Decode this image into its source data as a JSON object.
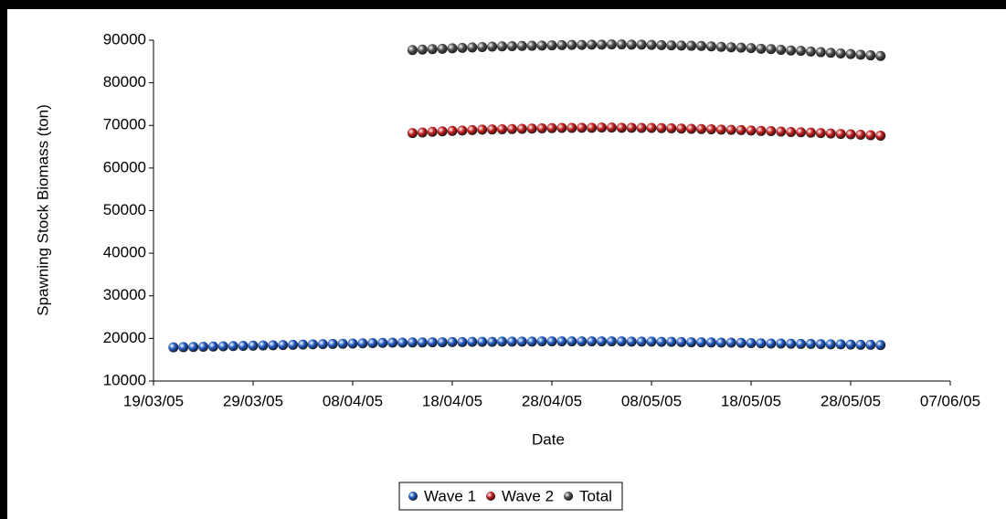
{
  "chart_data": {
    "type": "scatter",
    "xlabel": "Date",
    "ylabel": "Spawning Stock Biomass (ton)",
    "x": [
      "21/03/05",
      "22/03/05",
      "23/03/05",
      "24/03/05",
      "25/03/05",
      "26/03/05",
      "27/03/05",
      "28/03/05",
      "29/03/05",
      "30/03/05",
      "31/03/05",
      "01/04/05",
      "02/04/05",
      "03/04/05",
      "04/04/05",
      "05/04/05",
      "06/04/05",
      "07/04/05",
      "08/04/05",
      "09/04/05",
      "10/04/05",
      "11/04/05",
      "12/04/05",
      "13/04/05",
      "14/04/05",
      "15/04/05",
      "16/04/05",
      "17/04/05",
      "18/04/05",
      "19/04/05",
      "20/04/05",
      "21/04/05",
      "22/04/05",
      "23/04/05",
      "24/04/05",
      "25/04/05",
      "26/04/05",
      "27/04/05",
      "28/04/05",
      "29/04/05",
      "30/04/05",
      "01/05/05",
      "02/05/05",
      "03/05/05",
      "04/05/05",
      "05/05/05",
      "06/05/05",
      "07/05/05",
      "08/05/05",
      "09/05/05",
      "10/05/05",
      "11/05/05",
      "12/05/05",
      "13/05/05",
      "14/05/05",
      "15/05/05",
      "16/05/05",
      "17/05/05",
      "18/05/05",
      "19/05/05",
      "20/05/05",
      "21/05/05",
      "22/05/05",
      "23/05/05",
      "24/05/05",
      "25/05/05",
      "26/05/05",
      "27/05/05",
      "28/05/05",
      "29/05/05",
      "30/05/05",
      "31/05/05"
    ],
    "series": [
      {
        "name": "Wave 1",
        "color": "#1f5cc8",
        "values": [
          17900,
          17950,
          18000,
          18050,
          18100,
          18150,
          18200,
          18250,
          18300,
          18350,
          18400,
          18450,
          18500,
          18550,
          18600,
          18650,
          18700,
          18750,
          18800,
          18850,
          18900,
          18950,
          19000,
          19000,
          19050,
          19050,
          19100,
          19100,
          19150,
          19150,
          19200,
          19200,
          19200,
          19250,
          19250,
          19250,
          19250,
          19300,
          19300,
          19300,
          19300,
          19300,
          19300,
          19300,
          19300,
          19300,
          19250,
          19250,
          19250,
          19200,
          19200,
          19150,
          19100,
          19100,
          19050,
          19000,
          19000,
          18950,
          18900,
          18850,
          18800,
          18800,
          18750,
          18700,
          18700,
          18650,
          18600,
          18600,
          18550,
          18500,
          18500,
          18450
        ]
      },
      {
        "name": "Wave 2",
        "color": "#c81e1e",
        "values": [
          null,
          null,
          null,
          null,
          null,
          null,
          null,
          null,
          null,
          null,
          null,
          null,
          null,
          null,
          null,
          null,
          null,
          null,
          null,
          null,
          null,
          null,
          null,
          null,
          68200,
          68350,
          68500,
          68600,
          68700,
          68800,
          68900,
          69000,
          69050,
          69100,
          69150,
          69200,
          69250,
          69300,
          69350,
          69400,
          69400,
          69450,
          69450,
          69500,
          69500,
          69450,
          69450,
          69400,
          69400,
          69350,
          69300,
          69250,
          69200,
          69150,
          69100,
          69000,
          68950,
          68900,
          68800,
          68700,
          68650,
          68550,
          68450,
          68400,
          68300,
          68200,
          68100,
          68000,
          67900,
          67800,
          67700,
          67600
        ]
      },
      {
        "name": "Total",
        "color": "#505050",
        "values": [
          null,
          null,
          null,
          null,
          null,
          null,
          null,
          null,
          null,
          null,
          null,
          null,
          null,
          null,
          null,
          null,
          null,
          null,
          null,
          null,
          null,
          null,
          null,
          null,
          87700,
          87800,
          87900,
          88000,
          88100,
          88200,
          88300,
          88400,
          88500,
          88550,
          88600,
          88650,
          88700,
          88750,
          88800,
          88850,
          88900,
          88900,
          88950,
          88950,
          89000,
          89000,
          88950,
          88950,
          88900,
          88850,
          88800,
          88750,
          88700,
          88650,
          88550,
          88450,
          88350,
          88250,
          88150,
          88000,
          87900,
          87750,
          87600,
          87500,
          87350,
          87200,
          87050,
          86900,
          86750,
          86600,
          86450,
          86300
        ]
      }
    ],
    "xlim": [
      "19/03/05",
      "07/06/05"
    ],
    "xticks": [
      "19/03/05",
      "29/03/05",
      "08/04/05",
      "18/04/05",
      "28/04/05",
      "08/05/05",
      "18/05/05",
      "28/05/05",
      "07/06/05"
    ],
    "ylim": [
      10000,
      90000
    ],
    "yticks": [
      10000,
      20000,
      30000,
      40000,
      50000,
      60000,
      70000,
      80000,
      90000
    ],
    "grid": false,
    "legend": "bottom"
  }
}
